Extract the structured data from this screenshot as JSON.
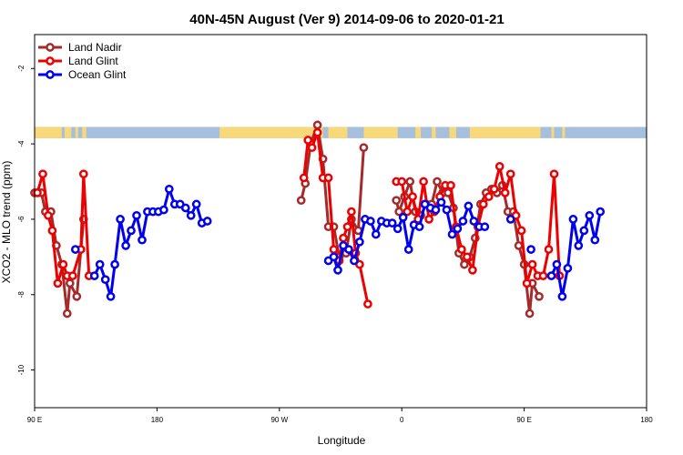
{
  "chart_data": {
    "type": "line",
    "title": "40N-45N August (Ver 9)   2014-09-06 to 2020-01-21",
    "xlabel": "Longitude",
    "ylabel": "XCO2 - MLO trend (ppm)",
    "xlim": [
      90,
      450
    ],
    "ylim": [
      -11,
      -1.1
    ],
    "x_ticks": [
      {
        "value": 90,
        "label": "90 E"
      },
      {
        "value": 180,
        "label": "180"
      },
      {
        "value": 270,
        "label": "90 W"
      },
      {
        "value": 360,
        "label": "0"
      },
      {
        "value": 450,
        "label": "90 E"
      },
      {
        "value": 540,
        "label": "180"
      }
    ],
    "y_ticks": [
      {
        "value": -2,
        "label": "-2"
      },
      {
        "value": -4,
        "label": "-4"
      },
      {
        "value": -6,
        "label": "-6"
      },
      {
        "value": -8,
        "label": "-8"
      },
      {
        "value": -10,
        "label": "-10"
      }
    ],
    "legend_position": "top-left",
    "grid": false,
    "land_mask_band": {
      "y_top": -3.55,
      "y_bottom": -3.85,
      "land_color": "#f7d87a",
      "ocean_color": "#a5bfdc"
    },
    "series": [
      {
        "name": "Land Nadir",
        "color": "#a52a2a",
        "x": [
          90,
          95,
          98,
          102,
          106,
          110,
          114,
          118,
          122,
          126
        ],
        "y": [
          -5.3,
          -5.3,
          -5.8,
          -5.8,
          -6.7,
          -7.2,
          -8.5,
          -7.7,
          -7.5,
          -8.05
        ],
        "x2": [
          142,
          146,
          150,
          154,
          158,
          162,
          166,
          170,
          174,
          178
        ],
        "y2": [
          -6.0,
          -7.1,
          -7.6,
          -8.3,
          -7.5,
          -8.5,
          -7.7,
          -7.5,
          -8.05,
          -6.0
        ]
      }
    ],
    "series_list": [
      {
        "name": "Land Nadir",
        "color": "#a52a2a",
        "points": [
          [
            90,
            -5.3
          ],
          [
            95,
            -5.3
          ],
          [
            98,
            -5.8
          ],
          [
            102,
            -5.8
          ],
          [
            106,
            -6.7
          ],
          [
            110,
            -7.2
          ],
          [
            114,
            -8.5
          ],
          [
            116,
            -7.7
          ],
          [
            121,
            -8.05
          ],
          [
            126,
            -6.0
          ],
          [
            286,
            -5.5
          ],
          [
            289,
            -5.05
          ],
          [
            293,
            -4.0
          ],
          [
            298,
            -3.5
          ],
          [
            302,
            -4.4
          ],
          [
            306,
            -6.2
          ],
          [
            310,
            -6.2
          ],
          [
            314,
            -7.0
          ],
          [
            319,
            -6.9
          ],
          [
            323,
            -6.0
          ],
          [
            328,
            -6.3
          ],
          [
            332,
            -4.1
          ],
          [
            356,
            -5.5
          ],
          [
            358,
            -5.8
          ],
          [
            362,
            -5.4
          ],
          [
            366,
            -5.0
          ],
          [
            370,
            -5.8
          ],
          [
            374,
            -5.9
          ],
          [
            378,
            -5.6
          ],
          [
            382,
            -5.6
          ],
          [
            386,
            -5.0
          ],
          [
            390,
            -5.3
          ],
          [
            394,
            -5.3
          ],
          [
            398,
            -5.7
          ],
          [
            402,
            -6.9
          ],
          [
            406,
            -7.2
          ],
          [
            410,
            -7.0
          ],
          [
            414,
            -6.5
          ],
          [
            418,
            -5.6
          ],
          [
            422,
            -5.3
          ],
          [
            426,
            -5.2
          ],
          [
            430,
            -5.3
          ],
          [
            434,
            -5.1
          ],
          [
            438,
            -5.8
          ],
          [
            442,
            -5.8
          ],
          [
            446,
            -6.7
          ],
          [
            450,
            -7.2
          ],
          [
            454,
            -8.5
          ],
          [
            456,
            -7.7
          ],
          [
            461,
            -8.05
          ]
        ]
      },
      {
        "name": "Land Glint",
        "color": "#ee0000",
        "points": [
          [
            92,
            -5.3
          ],
          [
            96,
            -4.8
          ],
          [
            100,
            -5.9
          ],
          [
            103,
            -6.3
          ],
          [
            107,
            -7.7
          ],
          [
            111,
            -7.2
          ],
          [
            114,
            -7.5
          ],
          [
            118,
            -7.5
          ],
          [
            124,
            -6.8
          ],
          [
            126,
            -4.8
          ],
          [
            130,
            -7.5
          ],
          [
            288,
            -4.9
          ],
          [
            291,
            -3.9
          ],
          [
            294,
            -4.1
          ],
          [
            298,
            -3.7
          ],
          [
            302,
            -4.9
          ],
          [
            306,
            -4.9
          ],
          [
            310,
            -6.8
          ],
          [
            314,
            -7.1
          ],
          [
            317,
            -6.5
          ],
          [
            320,
            -6.2
          ],
          [
            323,
            -5.8
          ],
          [
            326,
            -6.9
          ],
          [
            329,
            -7.2
          ],
          [
            335,
            -8.25
          ],
          [
            356,
            -5.0
          ],
          [
            360,
            -5.0
          ],
          [
            364,
            -5.8
          ],
          [
            368,
            -5.4
          ],
          [
            372,
            -6.0
          ],
          [
            376,
            -5.0
          ],
          [
            380,
            -6.0
          ],
          [
            384,
            -5.8
          ],
          [
            388,
            -5.4
          ],
          [
            392,
            -5.1
          ],
          [
            396,
            -5.1
          ],
          [
            400,
            -6.2
          ],
          [
            404,
            -6.8
          ],
          [
            408,
            -7.0
          ],
          [
            412,
            -7.35
          ],
          [
            416,
            -6.2
          ],
          [
            420,
            -5.6
          ],
          [
            424,
            -5.4
          ],
          [
            428,
            -5.2
          ],
          [
            432,
            -4.6
          ],
          [
            436,
            -5.3
          ],
          [
            440,
            -4.8
          ],
          [
            444,
            -5.9
          ],
          [
            448,
            -6.3
          ],
          [
            452,
            -7.7
          ],
          [
            456,
            -7.2
          ],
          [
            460,
            -7.5
          ],
          [
            464,
            -7.5
          ],
          [
            468,
            -6.8
          ],
          [
            472,
            -4.8
          ],
          [
            476,
            -7.5
          ]
        ]
      },
      {
        "name": "Ocean Glint",
        "color": "#0000ee",
        "points": [
          [
            120,
            -6.8
          ],
          [
            134,
            -7.5
          ],
          [
            138,
            -7.2
          ],
          [
            142,
            -7.6
          ],
          [
            146,
            -8.05
          ],
          [
            149,
            -7.2
          ],
          [
            153,
            -6.0
          ],
          [
            157,
            -6.7
          ],
          [
            161,
            -6.3
          ],
          [
            165,
            -5.9
          ],
          [
            169,
            -6.55
          ],
          [
            173,
            -5.8
          ],
          [
            177,
            -5.8
          ],
          [
            181,
            -5.8
          ],
          [
            185,
            -5.75
          ],
          [
            189,
            -5.2
          ],
          [
            193,
            -5.6
          ],
          [
            197,
            -5.6
          ],
          [
            201,
            -5.7
          ],
          [
            205,
            -5.9
          ],
          [
            209,
            -5.6
          ],
          [
            213,
            -6.1
          ],
          [
            217,
            -6.05
          ],
          [
            306,
            -7.1
          ],
          [
            310,
            -7.0
          ],
          [
            313,
            -7.35
          ],
          [
            317,
            -6.7
          ],
          [
            321,
            -6.8
          ],
          [
            325,
            -7.1
          ],
          [
            329,
            -6.6
          ],
          [
            333,
            -6.0
          ],
          [
            337,
            -6.05
          ],
          [
            341,
            -6.4
          ],
          [
            345,
            -6.05
          ],
          [
            349,
            -6.1
          ],
          [
            353,
            -6.1
          ],
          [
            357,
            -6.25
          ],
          [
            361,
            -5.95
          ],
          [
            365,
            -6.8
          ],
          [
            369,
            -6.15
          ],
          [
            373,
            -6.2
          ],
          [
            377,
            -5.6
          ],
          [
            381,
            -5.7
          ],
          [
            385,
            -5.75
          ],
          [
            389,
            -5.55
          ],
          [
            393,
            -5.75
          ],
          [
            397,
            -6.4
          ],
          [
            401,
            -6.25
          ],
          [
            405,
            -6.05
          ],
          [
            409,
            -5.65
          ],
          [
            413,
            -6.05
          ],
          [
            417,
            -6.2
          ],
          [
            421,
            -6.2
          ],
          [
            440,
            -6.0
          ],
          [
            455,
            -6.8
          ],
          [
            470,
            -7.5
          ],
          [
            474,
            -7.2
          ],
          [
            478,
            -8.05
          ],
          [
            482,
            -7.3
          ],
          [
            486,
            -6.0
          ],
          [
            490,
            -6.7
          ],
          [
            494,
            -6.3
          ],
          [
            498,
            -5.9
          ],
          [
            502,
            -6.55
          ],
          [
            506,
            -5.8
          ]
        ]
      }
    ]
  }
}
